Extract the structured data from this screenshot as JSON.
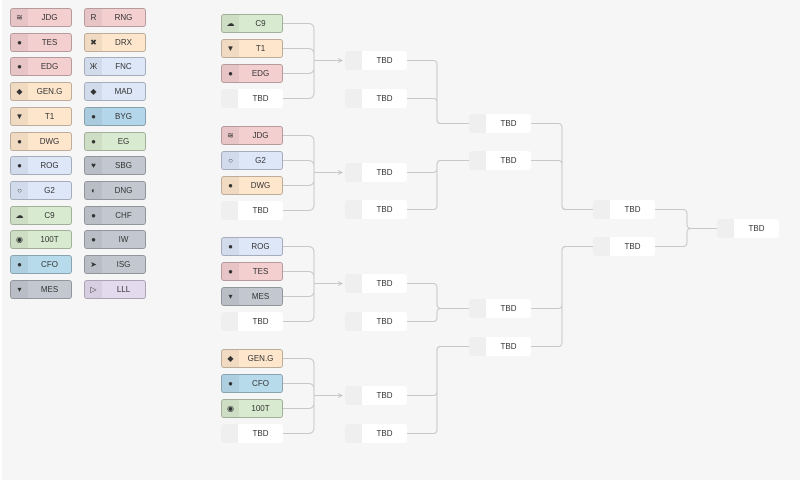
{
  "colors": {
    "red": "#f4cfd0",
    "orange": "#fde6cc",
    "lightblue": "#dde7f8",
    "blue": "#b4d6ea",
    "green": "#d8eacf",
    "gray": "#c3c8d0",
    "purple": "#e4daee",
    "cyan": "#b8dbec"
  },
  "team_list": {
    "left": [
      {
        "name": "JDG",
        "color": "red",
        "icon": "jdg-logo-icon",
        "glyph": "≋"
      },
      {
        "name": "TES",
        "color": "red",
        "icon": "tes-logo-icon",
        "glyph": "●"
      },
      {
        "name": "EDG",
        "color": "red",
        "icon": "edg-logo-icon",
        "glyph": "●"
      },
      {
        "name": "GEN.G",
        "color": "orange",
        "icon": "geng-logo-icon",
        "glyph": "◆"
      },
      {
        "name": "T1",
        "color": "orange",
        "icon": "t1-logo-icon",
        "glyph": "▼"
      },
      {
        "name": "DWG",
        "color": "orange",
        "icon": "dwg-logo-icon",
        "glyph": "●"
      },
      {
        "name": "ROG",
        "color": "lightblue",
        "icon": "rog-logo-icon",
        "glyph": "●"
      },
      {
        "name": "G2",
        "color": "lightblue",
        "icon": "g2-logo-icon",
        "glyph": "○"
      },
      {
        "name": "C9",
        "color": "green",
        "icon": "c9-logo-icon",
        "glyph": "☁"
      },
      {
        "name": "100T",
        "color": "green",
        "icon": "100t-logo-icon",
        "glyph": "◉"
      },
      {
        "name": "CFO",
        "color": "cyan",
        "icon": "cfo-logo-icon",
        "glyph": "●"
      },
      {
        "name": "MES",
        "color": "gray",
        "icon": "mes-logo-icon",
        "glyph": "▾"
      }
    ],
    "right": [
      {
        "name": "RNG",
        "color": "red",
        "icon": "rng-logo-icon",
        "glyph": "R"
      },
      {
        "name": "DRX",
        "color": "orange",
        "icon": "drx-logo-icon",
        "glyph": "✖"
      },
      {
        "name": "FNC",
        "color": "lightblue",
        "icon": "fnc-logo-icon",
        "glyph": "Ж"
      },
      {
        "name": "MAD",
        "color": "lightblue",
        "icon": "mad-logo-icon",
        "glyph": "◆"
      },
      {
        "name": "BYG",
        "color": "blue",
        "icon": "byg-logo-icon",
        "glyph": "●"
      },
      {
        "name": "EG",
        "color": "green",
        "icon": "eg-logo-icon",
        "glyph": "●"
      },
      {
        "name": "SBG",
        "color": "gray",
        "icon": "sbg-logo-icon",
        "glyph": "♥"
      },
      {
        "name": "DNG",
        "color": "gray",
        "icon": "dng-logo-icon",
        "glyph": "◐"
      },
      {
        "name": "CHF",
        "color": "gray",
        "icon": "chf-logo-icon",
        "glyph": "●"
      },
      {
        "name": "IW",
        "color": "gray",
        "icon": "iw-logo-icon",
        "glyph": "●"
      },
      {
        "name": "ISG",
        "color": "gray",
        "icon": "isg-logo-icon",
        "glyph": "➤"
      },
      {
        "name": "LLL",
        "color": "purple",
        "icon": "lll-logo-icon",
        "glyph": "▷"
      }
    ]
  },
  "bracket": {
    "round1": [
      [
        {
          "name": "C9",
          "color": "green",
          "glyph": "☁"
        },
        {
          "name": "T1",
          "color": "orange",
          "glyph": "▼"
        },
        {
          "name": "EDG",
          "color": "red",
          "glyph": "●"
        },
        {
          "name": "TBD"
        }
      ],
      [
        {
          "name": "JDG",
          "color": "red",
          "glyph": "≋"
        },
        {
          "name": "G2",
          "color": "lightblue",
          "glyph": "○"
        },
        {
          "name": "DWG",
          "color": "orange",
          "glyph": "●"
        },
        {
          "name": "TBD"
        }
      ],
      [
        {
          "name": "ROG",
          "color": "lightblue",
          "glyph": "●"
        },
        {
          "name": "TES",
          "color": "red",
          "glyph": "●"
        },
        {
          "name": "MES",
          "color": "gray",
          "glyph": "▾"
        },
        {
          "name": "TBD"
        }
      ],
      [
        {
          "name": "GEN.G",
          "color": "orange",
          "glyph": "◆"
        },
        {
          "name": "CFO",
          "color": "cyan",
          "glyph": "●"
        },
        {
          "name": "100T",
          "color": "green",
          "glyph": "◉"
        },
        {
          "name": "TBD"
        }
      ]
    ],
    "round2": [
      "TBD",
      "TBD",
      "TBD",
      "TBD",
      "TBD",
      "TBD",
      "TBD",
      "TBD"
    ],
    "round3": [
      "TBD",
      "TBD",
      "TBD",
      "TBD"
    ],
    "round4": [
      "TBD",
      "TBD"
    ],
    "final": [
      "TBD"
    ]
  }
}
